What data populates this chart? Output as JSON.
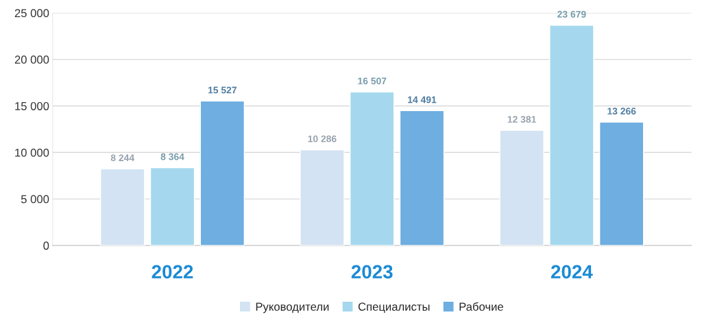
{
  "chart_data": {
    "type": "bar",
    "categories": [
      "2022",
      "2023",
      "2024"
    ],
    "series": [
      {
        "name": "Руководители",
        "color": "#d3e3f3",
        "values": [
          8244,
          10286,
          12381
        ],
        "value_labels": [
          "8 244",
          "10 286",
          "12 381"
        ]
      },
      {
        "name": "Специалисты",
        "color": "#a5d8ee",
        "values": [
          8364,
          16507,
          23679
        ],
        "value_labels": [
          "8 364",
          "16 507",
          "23 679"
        ]
      },
      {
        "name": "Рабочие",
        "color": "#6eaee0",
        "values": [
          15527,
          14491,
          13266
        ],
        "value_labels": [
          "15 527",
          "14 491",
          "13 266"
        ]
      }
    ],
    "ylim": [
      0,
      25000
    ],
    "yticks": [
      0,
      {
        "value": 5000,
        "label": "5 000"
      },
      {
        "value": 10000,
        "label": "10 000"
      },
      {
        "value": 15000,
        "label": "15 000"
      },
      {
        "value": 20000,
        "label": "20 000"
      },
      {
        "value": 25000,
        "label": "25 000"
      }
    ],
    "grid": "y",
    "legend": "bottom"
  }
}
